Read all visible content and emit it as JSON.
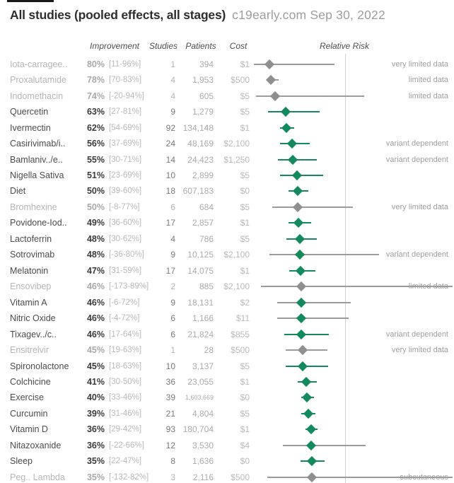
{
  "header": {
    "title": "All studies (pooled effects, all stages)",
    "source": "c19early.com Sep 30, 2022"
  },
  "columns": {
    "improvement": "Improvement",
    "studies": "Studies",
    "patients": "Patients",
    "cost": "Cost",
    "relative_risk": "Relative Risk"
  },
  "colors": {
    "green": "#128a5e",
    "gray_marker": "#8f8f8f",
    "gray_line": "#9b9b9b",
    "reference_line": "#d2d2d2"
  },
  "chart_data": {
    "type": "scatter",
    "subtype": "forest-plot",
    "title": "All studies (pooled effects, all stages)",
    "source": "c19early.com Sep 30, 2022",
    "xlabel": "Relative Risk",
    "reference_line_rr": 1.0,
    "legend_position": "none",
    "grid": false,
    "note": "Relative Risk point = 1 - improvement%; CI from bracketed range; gray rows = limited evidence; gray CI lines cross RR=1",
    "rows": [
      {
        "name": "Iota-carragee..",
        "improvement_pct": 80,
        "ci_label": "[11-96%]",
        "ci_pct": [
          11,
          96
        ],
        "studies": "1",
        "patients": "394",
        "cost": "$1",
        "status": "gray",
        "note": "very limited data"
      },
      {
        "name": "Proxalutamide",
        "improvement_pct": 78,
        "ci_label": "[70-83%]",
        "ci_pct": [
          70,
          83
        ],
        "studies": "4",
        "patients": "1,953",
        "cost": "$500",
        "status": "gray",
        "note": "limited data"
      },
      {
        "name": "Indomethacin",
        "improvement_pct": 74,
        "ci_label": "[-20-94%]",
        "ci_pct": [
          -20,
          94
        ],
        "studies": "4",
        "patients": "605",
        "cost": "$5",
        "status": "gray",
        "note": "limited data"
      },
      {
        "name": "Quercetin",
        "improvement_pct": 63,
        "ci_label": "[27-81%]",
        "ci_pct": [
          27,
          81
        ],
        "studies": "9",
        "patients": "1,279",
        "cost": "$5",
        "status": "green",
        "note": ""
      },
      {
        "name": "Ivermectin",
        "improvement_pct": 62,
        "ci_label": "[54-69%]",
        "ci_pct": [
          54,
          69
        ],
        "studies": "92",
        "patients": "134,148",
        "cost": "$1",
        "status": "green",
        "note": ""
      },
      {
        "name": "Casirivimab/i..",
        "improvement_pct": 56,
        "ci_label": "[37-69%]",
        "ci_pct": [
          37,
          69
        ],
        "studies": "24",
        "patients": "48,169",
        "cost": "$2,100",
        "status": "green",
        "note": "variant dependent"
      },
      {
        "name": "Bamlaniv../e..",
        "improvement_pct": 55,
        "ci_label": "[30-71%]",
        "ci_pct": [
          30,
          71
        ],
        "studies": "14",
        "patients": "24,423",
        "cost": "$1,250",
        "status": "green",
        "note": "variant dependent"
      },
      {
        "name": "Nigella Sativa",
        "improvement_pct": 51,
        "ci_label": "[23-69%]",
        "ci_pct": [
          23,
          69
        ],
        "studies": "10",
        "patients": "2,899",
        "cost": "$5",
        "status": "green",
        "note": ""
      },
      {
        "name": "Diet",
        "improvement_pct": 50,
        "ci_label": "[39-60%]",
        "ci_pct": [
          39,
          60
        ],
        "studies": "18",
        "patients": "607,183",
        "cost": "$0",
        "status": "green",
        "note": ""
      },
      {
        "name": "Bromhexine",
        "improvement_pct": 50,
        "ci_label": "[-8-77%]",
        "ci_pct": [
          -8,
          77
        ],
        "studies": "6",
        "patients": "684",
        "cost": "$5",
        "status": "gray",
        "note": "very limited data"
      },
      {
        "name": "Povidone-Iod..",
        "improvement_pct": 49,
        "ci_label": "[36-60%]",
        "ci_pct": [
          36,
          60
        ],
        "studies": "17",
        "patients": "2,857",
        "cost": "$1",
        "status": "green",
        "note": ""
      },
      {
        "name": "Lactoferrin",
        "improvement_pct": 48,
        "ci_label": "[30-62%]",
        "ci_pct": [
          30,
          62
        ],
        "studies": "4",
        "patients": "786",
        "cost": "$5",
        "status": "green",
        "note": ""
      },
      {
        "name": "Sotrovimab",
        "improvement_pct": 48,
        "ci_label": "[-36-80%]",
        "ci_pct": [
          -36,
          80
        ],
        "studies": "9",
        "patients": "10,125",
        "cost": "$2,100",
        "status": "green",
        "note": "variant dependent"
      },
      {
        "name": "Melatonin",
        "improvement_pct": 47,
        "ci_label": "[31-59%]",
        "ci_pct": [
          31,
          59
        ],
        "studies": "17",
        "patients": "14,075",
        "cost": "$1",
        "status": "green",
        "note": ""
      },
      {
        "name": "Ensovibep",
        "improvement_pct": 46,
        "ci_label": "[-173-89%]",
        "ci_pct": [
          -173,
          89
        ],
        "studies": "2",
        "patients": "885",
        "cost": "$2,100",
        "status": "gray",
        "note": "limited data"
      },
      {
        "name": "Vitamin A",
        "improvement_pct": 46,
        "ci_label": "[-6-72%]",
        "ci_pct": [
          -6,
          72
        ],
        "studies": "9",
        "patients": "18,131",
        "cost": "$2",
        "status": "green",
        "note": ""
      },
      {
        "name": "Nitric Oxide",
        "improvement_pct": 46,
        "ci_label": "[-4-72%]",
        "ci_pct": [
          -4,
          72
        ],
        "studies": "6",
        "patients": "1,166",
        "cost": "$11",
        "status": "green",
        "note": ""
      },
      {
        "name": "Tixagev../c..",
        "improvement_pct": 46,
        "ci_label": "[17-64%]",
        "ci_pct": [
          17,
          64
        ],
        "studies": "6",
        "patients": "21,824",
        "cost": "$855",
        "status": "green",
        "note": "variant dependent"
      },
      {
        "name": "Ensitrelvir",
        "improvement_pct": 45,
        "ci_label": "[19-63%]",
        "ci_pct": [
          19,
          63
        ],
        "studies": "1",
        "patients": "28",
        "cost": "$500",
        "status": "gray",
        "note": "very limited data"
      },
      {
        "name": "Spironolactone",
        "improvement_pct": 45,
        "ci_label": "[18-63%]",
        "ci_pct": [
          18,
          63
        ],
        "studies": "10",
        "patients": "3,137",
        "cost": "$5",
        "status": "green",
        "note": ""
      },
      {
        "name": "Colchicine",
        "improvement_pct": 41,
        "ci_label": "[30-50%]",
        "ci_pct": [
          30,
          50
        ],
        "studies": "36",
        "patients": "23,055",
        "cost": "$1",
        "status": "green",
        "note": ""
      },
      {
        "name": "Exercise",
        "improvement_pct": 40,
        "ci_label": "[33-46%]",
        "ci_pct": [
          33,
          46
        ],
        "studies": "39",
        "patients": "1,603,669",
        "cost": "$0",
        "status": "green",
        "note": ""
      },
      {
        "name": "Curcumin",
        "improvement_pct": 39,
        "ci_label": "[31-46%]",
        "ci_pct": [
          31,
          46
        ],
        "studies": "21",
        "patients": "4,804",
        "cost": "$5",
        "status": "green",
        "note": ""
      },
      {
        "name": "Vitamin D",
        "improvement_pct": 36,
        "ci_label": "[29-42%]",
        "ci_pct": [
          29,
          42
        ],
        "studies": "93",
        "patients": "180,704",
        "cost": "$1",
        "status": "green",
        "note": ""
      },
      {
        "name": "Nitazoxanide",
        "improvement_pct": 36,
        "ci_label": "[-22-66%]",
        "ci_pct": [
          -22,
          66
        ],
        "studies": "12",
        "patients": "3,530",
        "cost": "$4",
        "status": "green",
        "note": ""
      },
      {
        "name": "Sleep",
        "improvement_pct": 35,
        "ci_label": "[22-47%]",
        "ci_pct": [
          22,
          47
        ],
        "studies": "8",
        "patients": "1,636",
        "cost": "$0",
        "status": "green",
        "note": ""
      },
      {
        "name": "Peg.. Lambda",
        "improvement_pct": 35,
        "ci_label": "[-132-82%]",
        "ci_pct": [
          -132,
          82
        ],
        "studies": "3",
        "patients": "2,116",
        "cost": "$500",
        "status": "gray",
        "note": "subcutaneous"
      }
    ]
  }
}
